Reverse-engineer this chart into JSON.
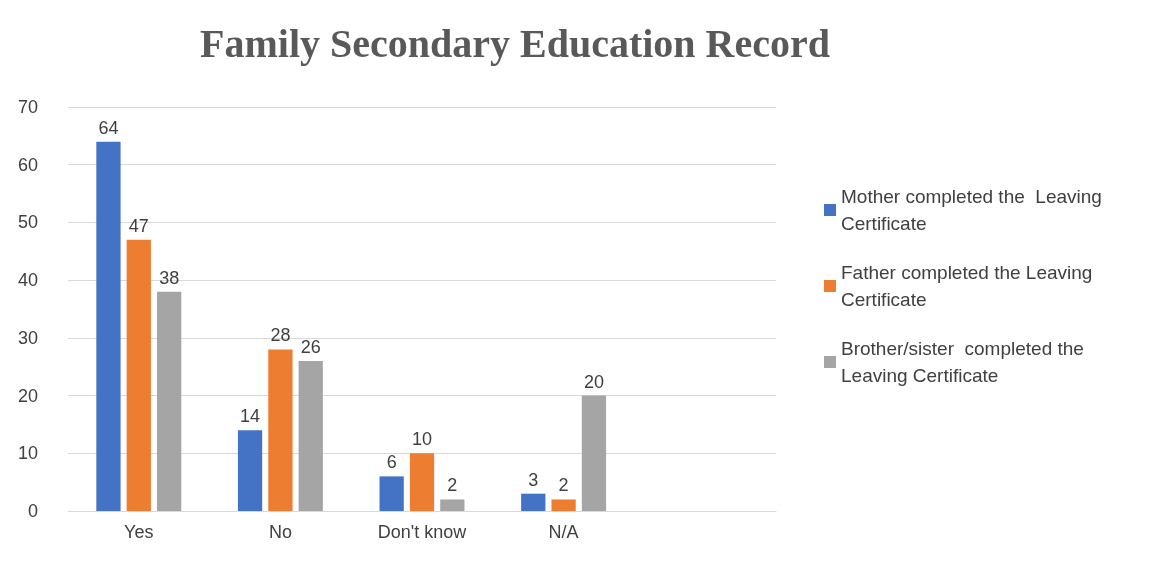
{
  "chart_data": {
    "type": "bar",
    "title": "Family Secondary Education Record",
    "categories": [
      "Yes",
      "No",
      "Don't know",
      "N/A",
      null
    ],
    "series": [
      {
        "name": "Mother completed the  Leaving Certificate",
        "color": "#4472c4",
        "values": [
          64,
          14,
          6,
          3,
          null
        ]
      },
      {
        "name": "Father completed the Leaving Certificate",
        "color": "#ed7d31",
        "values": [
          47,
          28,
          10,
          2,
          null
        ]
      },
      {
        "name": "Brother/sister  completed the Leaving Certificate",
        "color": "#a5a5a5",
        "values": [
          38,
          26,
          2,
          20,
          null
        ]
      }
    ],
    "ylim": [
      0,
      70
    ],
    "yticks": [
      0,
      10,
      20,
      30,
      40,
      50,
      60,
      70
    ],
    "grid": "y",
    "legend": "right",
    "data_labels": true
  }
}
